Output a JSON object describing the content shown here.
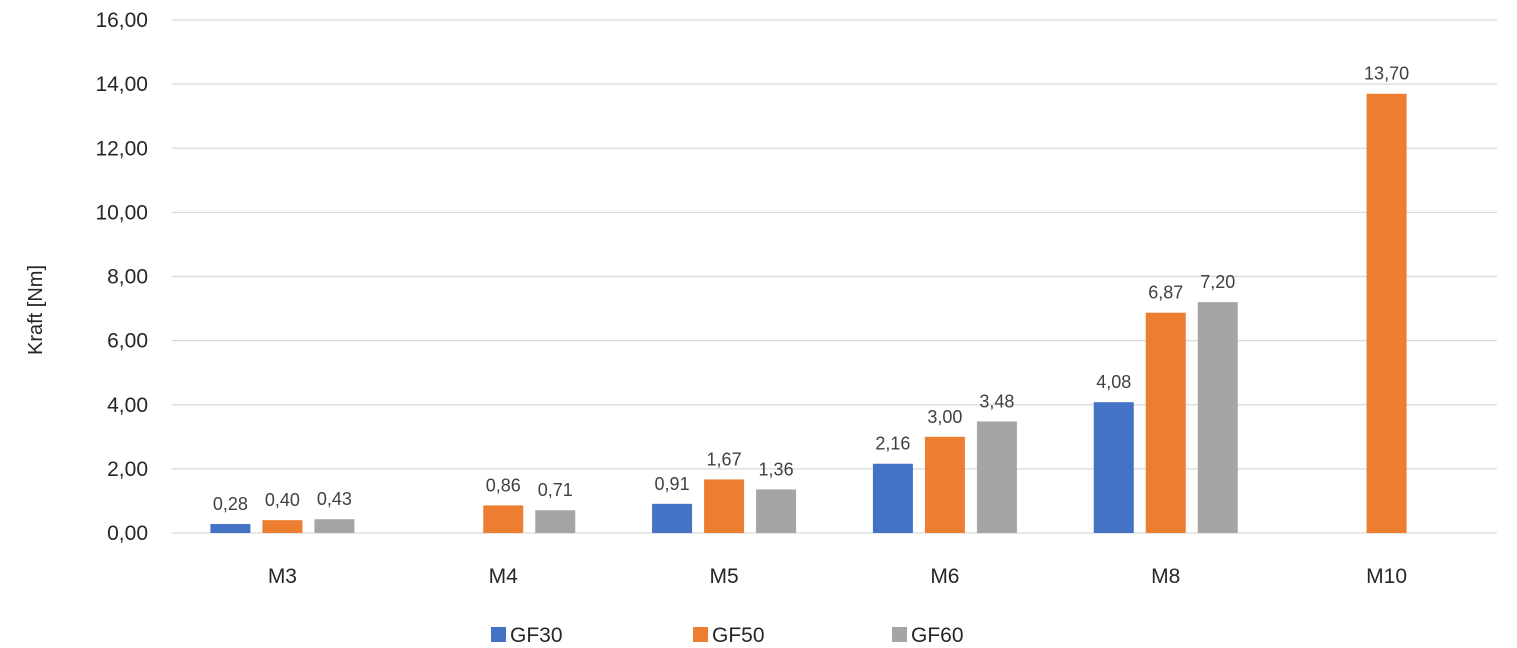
{
  "chart_data": {
    "type": "bar",
    "categories": [
      "M3",
      "M4",
      "M5",
      "M6",
      "M8",
      "M10"
    ],
    "series": [
      {
        "name": "GF30",
        "color": "#4472c4",
        "values": [
          0.28,
          null,
          0.91,
          2.16,
          4.08,
          null
        ],
        "labels": [
          "0,28",
          "",
          "0,91",
          "2,16",
          "4,08",
          ""
        ]
      },
      {
        "name": "GF50",
        "color": "#ed7d31",
        "values": [
          0.4,
          0.86,
          1.67,
          3.0,
          6.87,
          13.7
        ],
        "labels": [
          "0,40",
          "0,86",
          "1,67",
          "3,00",
          "6,87",
          "13,70"
        ]
      },
      {
        "name": "GF60",
        "color": "#a5a5a5",
        "values": [
          0.43,
          0.71,
          1.36,
          3.48,
          7.2,
          null
        ],
        "labels": [
          "0,43",
          "0,71",
          "1,36",
          "3,48",
          "7,20",
          ""
        ]
      }
    ],
    "title": "",
    "xlabel": "",
    "ylabel": "Kraft [Nm]",
    "ylim": [
      0,
      16
    ],
    "yticks": [
      0,
      2,
      4,
      6,
      8,
      10,
      12,
      14,
      16
    ],
    "ytick_labels": [
      "0,00",
      "2,00",
      "4,00",
      "6,00",
      "8,00",
      "10,00",
      "12,00",
      "14,00",
      "16,00"
    ],
    "grid": true,
    "legend_position": "bottom"
  }
}
